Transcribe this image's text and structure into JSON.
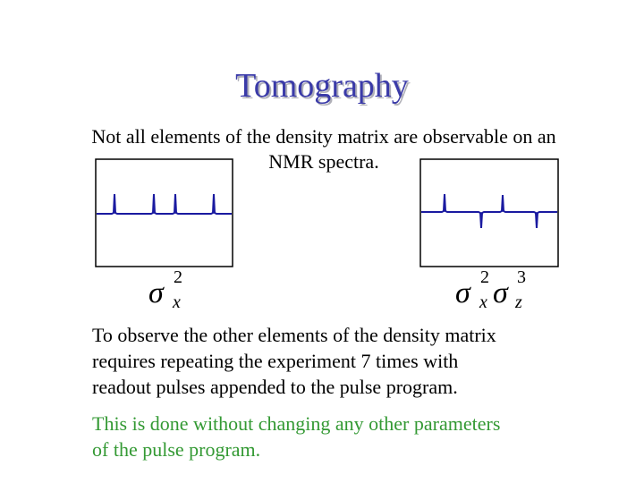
{
  "header": {
    "title": "Tomography"
  },
  "intro": {
    "lines": [
      "Not all elements of the density matrix are observable on an",
      "NMR spectra."
    ]
  },
  "figures": [
    {
      "label": {
        "symbol": "σ",
        "sup": "2",
        "sub": "x"
      }
    },
    {
      "label": {
        "symbol1": "σ",
        "sup1": "2",
        "sub1": "x",
        "symbol2": "σ",
        "sup2": "3",
        "sub2": "z"
      }
    }
  ],
  "body": {
    "lines": [
      "To observe the other elements of the density matrix",
      "requires repeating the experiment 7 times with",
      "readout pulses appended to the pulse program."
    ]
  },
  "note": {
    "lines": [
      "This is done without changing any other parameters",
      "of the pulse program."
    ]
  }
}
